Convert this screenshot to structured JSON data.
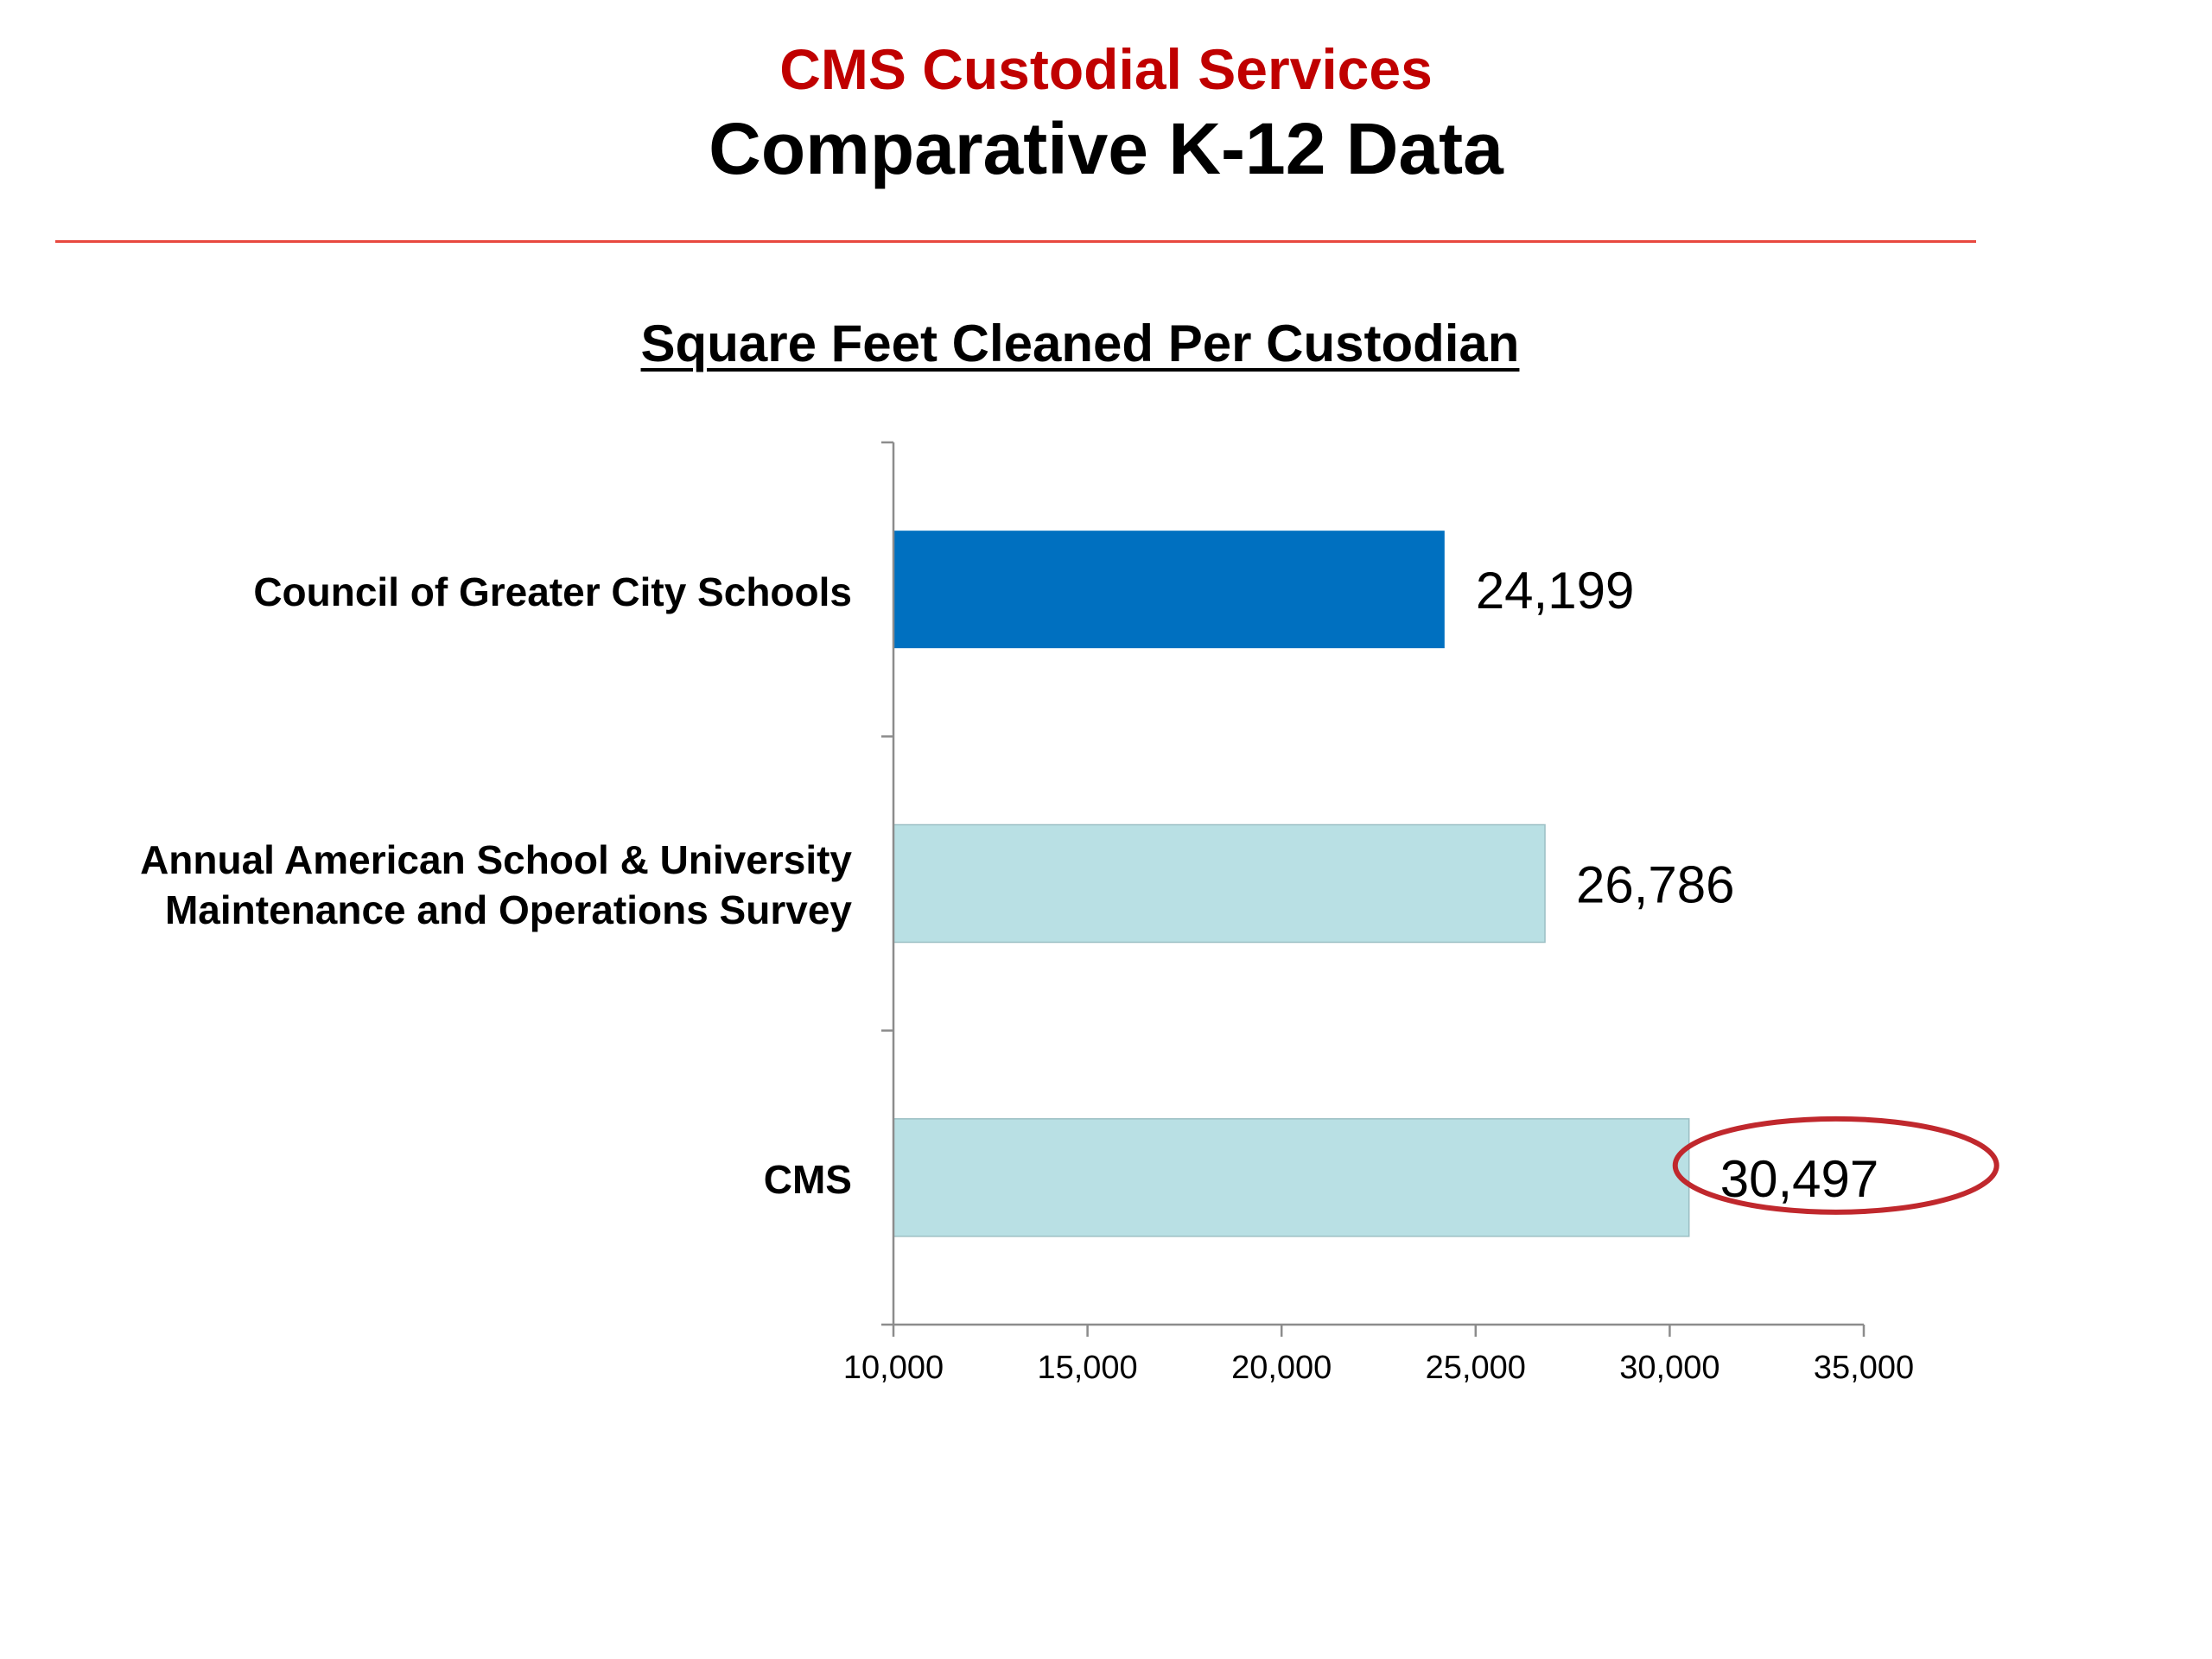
{
  "header": {
    "title": "CMS Custodial Services",
    "subtitle": "Comparative K-12 Data",
    "title_color": "#c00000",
    "rule_color": "#e8483f"
  },
  "chart_data": {
    "type": "bar",
    "orientation": "horizontal",
    "title": "Square Feet Cleaned Per Custodian",
    "categories": [
      "Council of Greater City Schools",
      "Annual American School & University Maintenance and Operations Survey",
      "CMS"
    ],
    "category_lines": [
      [
        "Council of Greater City Schools"
      ],
      [
        "Annual American School & University",
        "Maintenance and Operations Survey"
      ],
      [
        "CMS"
      ]
    ],
    "values": [
      24199,
      26786,
      30497
    ],
    "value_labels": [
      "24,199",
      "26,786",
      "30,497"
    ],
    "bar_colors": [
      "#0070c0",
      "#b9e0e4",
      "#b9e0e4"
    ],
    "xlim": [
      10000,
      35000
    ],
    "xticks": [
      10000,
      15000,
      20000,
      25000,
      30000,
      35000
    ],
    "xtick_labels": [
      "10,000",
      "15,000",
      "20,000",
      "25,000",
      "30,000",
      "35,000"
    ],
    "xlabel": "",
    "ylabel": "",
    "grid": false,
    "legend": "none",
    "highlight": {
      "category": "CMS",
      "shape": "ellipse",
      "color": "#c0282d"
    }
  }
}
